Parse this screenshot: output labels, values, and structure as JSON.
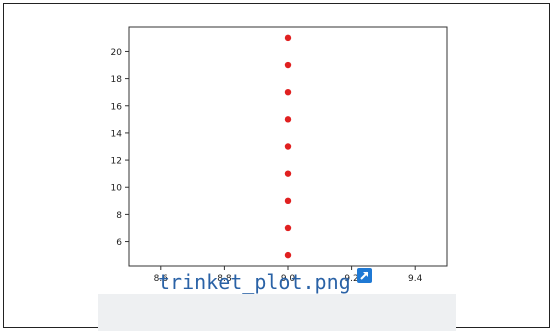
{
  "chart_data": {
    "type": "scatter",
    "x": [
      9.0,
      9.0,
      9.0,
      9.0,
      9.0,
      9.0,
      9.0,
      9.0,
      9.0
    ],
    "y": [
      5,
      7,
      9,
      11,
      13,
      15,
      17,
      19,
      21
    ],
    "xlim": [
      8.5,
      9.5
    ],
    "ylim": [
      4.2,
      21.8
    ],
    "xticks": [
      "8.6",
      "8.8",
      "9.0",
      "9.2",
      "9.4"
    ],
    "yticks": [
      "6",
      "8",
      "10",
      "12",
      "14",
      "16",
      "18",
      "20"
    ],
    "xtick_values": [
      8.6,
      8.8,
      9.0,
      9.2,
      9.4
    ],
    "ytick_values": [
      6,
      8,
      10,
      12,
      14,
      16,
      18,
      20
    ],
    "marker_color": "#e02020",
    "grid": false,
    "title": "",
    "xlabel": "",
    "ylabel": ""
  },
  "caption": {
    "filename": "trinket_plot.png",
    "icon": "external-link-icon",
    "icon_color": "#1f79d4"
  }
}
